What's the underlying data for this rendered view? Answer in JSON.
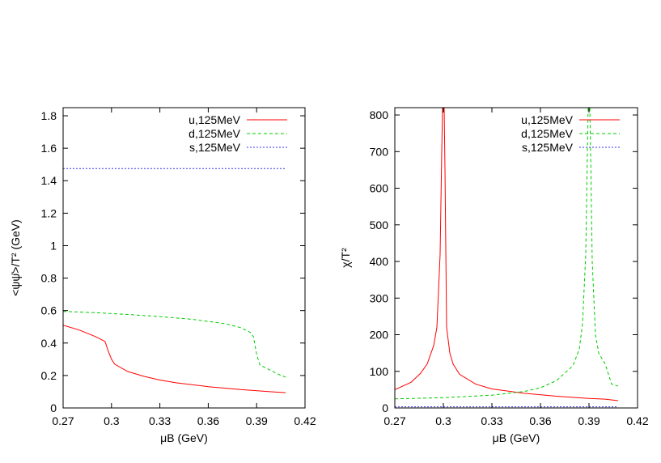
{
  "chart_data": [
    {
      "type": "line",
      "xlabel": "μB (GeV)",
      "ylabel": "<ψψ̄>/T² (GeV)",
      "xlim": [
        0.27,
        0.42
      ],
      "ylim": [
        0,
        1.85
      ],
      "xticks": [
        0.27,
        0.3,
        0.33,
        0.36,
        0.39,
        0.42
      ],
      "xtick_labels": [
        "0.27",
        "0.3",
        "0.33",
        "0.36",
        "0.39",
        "0.42"
      ],
      "yticks": [
        0,
        0.2,
        0.4,
        0.6,
        0.8,
        1.0,
        1.2,
        1.4,
        1.6,
        1.8
      ],
      "ytick_labels": [
        "0",
        "0.2",
        "0.4",
        "0.6",
        "0.8",
        "1",
        "1.2",
        "1.4",
        "1.6",
        "1.8"
      ],
      "grid": false,
      "legend": "top-right",
      "series": [
        {
          "name": "u,125MeV",
          "color": "#ff0000",
          "dash": "solid",
          "x": [
            0.27,
            0.28,
            0.29,
            0.296,
            0.298,
            0.3,
            0.302,
            0.31,
            0.32,
            0.33,
            0.34,
            0.36,
            0.38,
            0.4,
            0.408
          ],
          "y": [
            0.51,
            0.48,
            0.44,
            0.41,
            0.35,
            0.3,
            0.27,
            0.225,
            0.195,
            0.172,
            0.155,
            0.131,
            0.113,
            0.099,
            0.094
          ]
        },
        {
          "name": "d,125MeV",
          "color": "#00cc00",
          "dash": "dashed",
          "x": [
            0.27,
            0.29,
            0.31,
            0.33,
            0.35,
            0.37,
            0.38,
            0.386,
            0.388,
            0.39,
            0.392,
            0.396,
            0.4,
            0.404,
            0.408
          ],
          "y": [
            0.595,
            0.587,
            0.576,
            0.563,
            0.546,
            0.52,
            0.495,
            0.466,
            0.44,
            0.33,
            0.265,
            0.245,
            0.225,
            0.205,
            0.19
          ]
        },
        {
          "name": "s,125MeV",
          "color": "#3333ee",
          "dash": "dotted",
          "x": [
            0.27,
            0.408
          ],
          "y": [
            1.475,
            1.475
          ]
        }
      ]
    },
    {
      "type": "line",
      "xlabel": "μB (GeV)",
      "ylabel": "χ/T²",
      "xlim": [
        0.27,
        0.42
      ],
      "ylim": [
        0,
        820
      ],
      "xticks": [
        0.27,
        0.3,
        0.33,
        0.36,
        0.39,
        0.42
      ],
      "xtick_labels": [
        "0.27",
        "0.3",
        "0.33",
        "0.36",
        "0.39",
        "0.42"
      ],
      "yticks": [
        0,
        100,
        200,
        300,
        400,
        500,
        600,
        700,
        800
      ],
      "ytick_labels": [
        "0",
        "100",
        "200",
        "300",
        "400",
        "500",
        "600",
        "700",
        "800"
      ],
      "grid": false,
      "legend": "top-right",
      "series": [
        {
          "name": "u,125MeV",
          "color": "#ff0000",
          "dash": "solid",
          "x": [
            0.27,
            0.28,
            0.286,
            0.29,
            0.294,
            0.296,
            0.298,
            0.299,
            0.2995,
            0.3005,
            0.301,
            0.302,
            0.304,
            0.306,
            0.31,
            0.32,
            0.33,
            0.35,
            0.37,
            0.39,
            0.4,
            0.408
          ],
          "y": [
            50,
            70,
            95,
            120,
            170,
            220,
            420,
            700,
            820,
            820,
            650,
            220,
            150,
            120,
            92,
            65,
            52,
            40,
            32,
            26,
            24,
            20
          ],
          "segmented": true
        },
        {
          "name": "d,125MeV",
          "color": "#00cc00",
          "dash": "dashed",
          "x": [
            0.27,
            0.3,
            0.33,
            0.35,
            0.36,
            0.37,
            0.38,
            0.384,
            0.386,
            0.388,
            0.389,
            0.3895,
            0.3905,
            0.391,
            0.392,
            0.394,
            0.396,
            0.4,
            0.404,
            0.408
          ],
          "y": [
            25,
            28,
            35,
            45,
            55,
            75,
            115,
            160,
            230,
            420,
            700,
            820,
            820,
            700,
            400,
            200,
            150,
            120,
            65,
            60
          ]
        },
        {
          "name": "s,125MeV",
          "color": "#3333ee",
          "dash": "dotted",
          "x": [
            0.27,
            0.408
          ],
          "y": [
            3,
            3
          ]
        }
      ]
    }
  ]
}
